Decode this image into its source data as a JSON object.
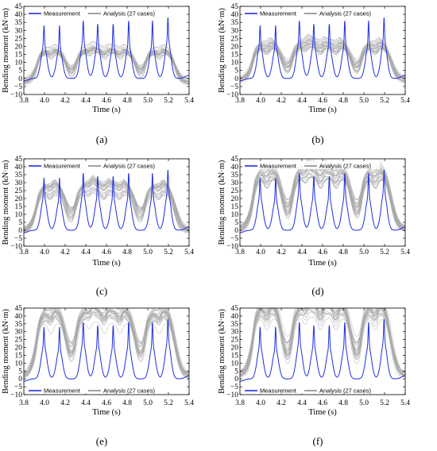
{
  "figure": {
    "panel_labels": [
      "(a)",
      "(b)",
      "(c)",
      "(d)",
      "(e)",
      "(f)"
    ]
  },
  "colors": {
    "measurement": "#1f2fe0",
    "analysis": "#a8a8a8"
  },
  "chart_data": [
    {
      "type": "line",
      "panel": "(a)",
      "xlabel": "Time (s)",
      "ylabel": "Bending moment (kN·m)",
      "xlim": [
        3.8,
        5.4
      ],
      "ylim": [
        -10,
        45
      ],
      "xticks": [
        "3.8",
        "4.0",
        "4.2",
        "4.4",
        "4.6",
        "4.8",
        "5.0",
        "5.2",
        "5.4"
      ],
      "yticks": [
        "−10",
        "−5",
        "0",
        "5",
        "10",
        "15",
        "20",
        "25",
        "30",
        "35",
        "40",
        "45"
      ],
      "legend": {
        "position": "top",
        "entries": [
          "Measurement",
          "Analysis (27 cases)"
        ]
      },
      "measurement": {
        "peak_times": [
          3.995,
          4.145,
          4.375,
          4.515,
          4.665,
          4.815,
          5.045,
          5.195
        ],
        "peaks": [
          34,
          34,
          37,
          35,
          35,
          37,
          37,
          39
        ],
        "humps": [
          22,
          20,
          24,
          22,
          21,
          22,
          22,
          25
        ],
        "trough": 1
      },
      "analysis": {
        "cases": 27,
        "peak_range": [
          13,
          17
        ],
        "trough_range": [
          -4,
          0
        ]
      }
    },
    {
      "type": "line",
      "panel": "(b)",
      "xlabel": "Time (s)",
      "ylabel": "Bending moment (kN·m)",
      "xlim": [
        3.8,
        5.4
      ],
      "ylim": [
        -10,
        45
      ],
      "xticks": [
        "3.8",
        "4.0",
        "4.2",
        "4.4",
        "4.6",
        "4.8",
        "5.0",
        "5.2",
        "5.4"
      ],
      "yticks": [
        "−10",
        "−5",
        "0",
        "5",
        "10",
        "15",
        "20",
        "25",
        "30",
        "35",
        "40",
        "45"
      ],
      "legend": {
        "position": "top",
        "entries": [
          "Measurement",
          "Analysis (27 cases)"
        ]
      },
      "measurement": {
        "peak_times": [
          3.995,
          4.145,
          4.375,
          4.515,
          4.665,
          4.815,
          5.045,
          5.195
        ],
        "peaks": [
          34,
          34,
          37,
          35,
          35,
          37,
          37,
          39
        ],
        "humps": [
          22,
          20,
          24,
          22,
          21,
          22,
          22,
          25
        ],
        "trough": 1
      },
      "analysis": {
        "cases": 27,
        "peak_range": [
          16,
          20
        ],
        "trough_range": [
          -3,
          1
        ]
      }
    },
    {
      "type": "line",
      "panel": "(c)",
      "xlabel": "Time (s)",
      "ylabel": "Bending moment (kN·m)",
      "xlim": [
        3.8,
        5.4
      ],
      "ylim": [
        -10,
        45
      ],
      "xticks": [
        "3.8",
        "4.0",
        "4.2",
        "4.4",
        "4.6",
        "4.8",
        "5.0",
        "5.2",
        "5.4"
      ],
      "yticks": [
        "−10",
        "−5",
        "0",
        "5",
        "10",
        "15",
        "20",
        "25",
        "30",
        "35",
        "40",
        "45"
      ],
      "legend": {
        "position": "top",
        "entries": [
          "Measurement",
          "Analysis (27 cases)"
        ]
      },
      "measurement": {
        "peak_times": [
          3.995,
          4.145,
          4.375,
          4.515,
          4.665,
          4.815,
          5.045,
          5.195
        ],
        "peaks": [
          34,
          34,
          37,
          35,
          35,
          37,
          37,
          39
        ],
        "humps": [
          22,
          20,
          24,
          22,
          21,
          22,
          22,
          25
        ],
        "trough": 1
      },
      "analysis": {
        "cases": 27,
        "peak_range": [
          20,
          26
        ],
        "trough_range": [
          -2,
          2
        ]
      }
    },
    {
      "type": "line",
      "panel": "(d)",
      "xlabel": "Time (s)",
      "ylabel": "Bending moment (kN·m)",
      "xlim": [
        3.8,
        5.4
      ],
      "ylim": [
        -10,
        45
      ],
      "xticks": [
        "3.8",
        "4.0",
        "4.2",
        "4.4",
        "4.6",
        "4.8",
        "5.0",
        "5.2",
        "5.4"
      ],
      "yticks": [
        "−10",
        "−5",
        "0",
        "5",
        "10",
        "15",
        "20",
        "25",
        "30",
        "35",
        "40",
        "45"
      ],
      "legend": {
        "position": "top",
        "entries": [
          "Measurement",
          "Analysis (27 cases)"
        ]
      },
      "measurement": {
        "peak_times": [
          3.995,
          4.145,
          4.375,
          4.515,
          4.665,
          4.815,
          5.045,
          5.195
        ],
        "peaks": [
          34,
          34,
          37,
          35,
          35,
          37,
          37,
          39
        ],
        "humps": [
          22,
          20,
          24,
          22,
          21,
          22,
          22,
          25
        ],
        "trough": 1
      },
      "analysis": {
        "cases": 27,
        "peak_range": [
          28,
          36
        ],
        "trough_range": [
          -1,
          3
        ]
      }
    },
    {
      "type": "line",
      "panel": "(e)",
      "xlabel": "Time (s)",
      "ylabel": "Bending moment (kN·m)",
      "xlim": [
        3.8,
        5.4
      ],
      "ylim": [
        -10,
        45
      ],
      "xticks": [
        "3.8",
        "4.0",
        "4.2",
        "4.4",
        "4.6",
        "4.8",
        "5.0",
        "5.2",
        "5.4"
      ],
      "yticks": [
        "−10",
        "−5",
        "0",
        "5",
        "10",
        "15",
        "20",
        "25",
        "30",
        "35",
        "40",
        "45"
      ],
      "legend": {
        "position": "bottom",
        "entries": [
          "Measurement",
          "Analysis (27 cases)"
        ]
      },
      "measurement": {
        "peak_times": [
          3.995,
          4.145,
          4.375,
          4.515,
          4.665,
          4.815,
          5.045,
          5.195
        ],
        "peaks": [
          34,
          34,
          37,
          35,
          35,
          37,
          37,
          39
        ],
        "humps": [
          22,
          20,
          24,
          22,
          21,
          22,
          22,
          25
        ],
        "trough": 1
      },
      "analysis": {
        "cases": 27,
        "peak_range": [
          33,
          40
        ],
        "trough_range": [
          0,
          4
        ]
      }
    },
    {
      "type": "line",
      "panel": "(f)",
      "xlabel": "Time (s)",
      "ylabel": "Bending moment (kN·m)",
      "xlim": [
        3.8,
        5.4
      ],
      "ylim": [
        -10,
        45
      ],
      "xticks": [
        "3.8",
        "4.0",
        "4.2",
        "4.4",
        "4.6",
        "4.8",
        "5.0",
        "5.2",
        "5.4"
      ],
      "yticks": [
        "−10",
        "−5",
        "0",
        "5",
        "10",
        "15",
        "20",
        "25",
        "30",
        "35",
        "40",
        "45"
      ],
      "legend": {
        "position": "bottom",
        "entries": [
          "Measurement",
          "Analysis (27 cases)"
        ]
      },
      "measurement": {
        "peak_times": [
          3.995,
          4.145,
          4.375,
          4.515,
          4.665,
          4.815,
          5.045,
          5.195
        ],
        "peaks": [
          34,
          34,
          37,
          35,
          35,
          37,
          37,
          39
        ],
        "humps": [
          22,
          20,
          24,
          22,
          21,
          22,
          22,
          25
        ],
        "trough": 1
      },
      "analysis": {
        "cases": 27,
        "peak_range": [
          36,
          44
        ],
        "trough_range": [
          1,
          5
        ]
      }
    }
  ]
}
